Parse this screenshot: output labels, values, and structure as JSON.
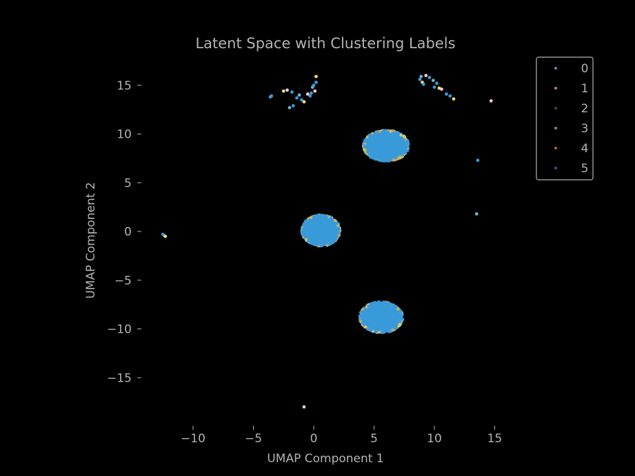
{
  "chart_data": {
    "type": "scatter",
    "title": "Latent Space with Clustering Labels",
    "xlabel": "UMAP Component 1",
    "ylabel": "UMAP Component 2",
    "xlim": [
      -15.0,
      19.0
    ],
    "ylim": [
      -19.0,
      18.5
    ],
    "xticks": [
      -10,
      -5,
      0,
      5,
      10,
      15
    ],
    "yticks": [
      -15,
      -10,
      -5,
      0,
      5,
      10,
      15
    ],
    "tick_labels_x": [
      "−10",
      "−5",
      "0",
      "5",
      "10",
      "15"
    ],
    "tick_labels_y": [
      "−15",
      "−10",
      "−5",
      "0",
      "5",
      "10",
      "15"
    ],
    "grid": false,
    "legend_position": "top-right",
    "background": "#000000",
    "text_color": "#b3b3b3",
    "dominant_point_color": "#3a9ad9",
    "legend": [
      {
        "label": "0",
        "color": "#7f7fbf"
      },
      {
        "label": "1",
        "color": "#b07f8a"
      },
      {
        "label": "2",
        "color": "#444444"
      },
      {
        "label": "3",
        "color": "#8a8f5a"
      },
      {
        "label": "4",
        "color": "#b5651d"
      },
      {
        "label": "5",
        "color": "#1f5fa0"
      }
    ],
    "clusters": [
      {
        "center": [
          6.0,
          8.8
        ],
        "radius": [
          1.9,
          1.6
        ],
        "approx_points": 1500
      },
      {
        "center": [
          0.6,
          0.1
        ],
        "radius": [
          1.6,
          1.6
        ],
        "approx_points": 1500
      },
      {
        "center": [
          5.6,
          -8.8
        ],
        "radius": [
          1.8,
          1.6
        ],
        "approx_points": 1500
      }
    ],
    "sparse_points": [
      {
        "x": -3.6,
        "y": 13.8
      },
      {
        "x": -3.5,
        "y": 13.9
      },
      {
        "x": -2.5,
        "y": 14.4
      },
      {
        "x": -2.2,
        "y": 14.5
      },
      {
        "x": -1.8,
        "y": 14.3
      },
      {
        "x": -1.2,
        "y": 14.0
      },
      {
        "x": -1.4,
        "y": 13.7
      },
      {
        "x": -1.0,
        "y": 13.5
      },
      {
        "x": -0.8,
        "y": 13.3
      },
      {
        "x": -0.5,
        "y": 14.1
      },
      {
        "x": -0.2,
        "y": 14.2
      },
      {
        "x": -0.1,
        "y": 14.8
      },
      {
        "x": 0.0,
        "y": 15.0
      },
      {
        "x": 0.2,
        "y": 15.3
      },
      {
        "x": 0.2,
        "y": 15.9
      },
      {
        "x": 0.1,
        "y": 14.4
      },
      {
        "x": -0.3,
        "y": 13.9
      },
      {
        "x": -2.0,
        "y": 12.7
      },
      {
        "x": -1.7,
        "y": 12.9
      },
      {
        "x": 8.8,
        "y": 15.6
      },
      {
        "x": 9.0,
        "y": 15.3
      },
      {
        "x": 9.3,
        "y": 16.0
      },
      {
        "x": 9.6,
        "y": 15.8
      },
      {
        "x": 9.9,
        "y": 15.5
      },
      {
        "x": 10.2,
        "y": 15.2
      },
      {
        "x": 10.0,
        "y": 14.8
      },
      {
        "x": 10.4,
        "y": 14.7
      },
      {
        "x": 10.6,
        "y": 14.6
      },
      {
        "x": 9.1,
        "y": 15.1
      },
      {
        "x": 8.9,
        "y": 15.9
      },
      {
        "x": 11.0,
        "y": 14.1
      },
      {
        "x": 11.3,
        "y": 13.9
      },
      {
        "x": 11.6,
        "y": 13.6
      },
      {
        "x": 14.7,
        "y": 13.4
      },
      {
        "x": 13.6,
        "y": 7.3
      },
      {
        "x": 13.5,
        "y": 1.8
      },
      {
        "x": -12.5,
        "y": -0.3
      },
      {
        "x": -12.4,
        "y": -0.4
      },
      {
        "x": -12.3,
        "y": -0.5
      },
      {
        "x": -0.8,
        "y": -18.0
      }
    ]
  }
}
